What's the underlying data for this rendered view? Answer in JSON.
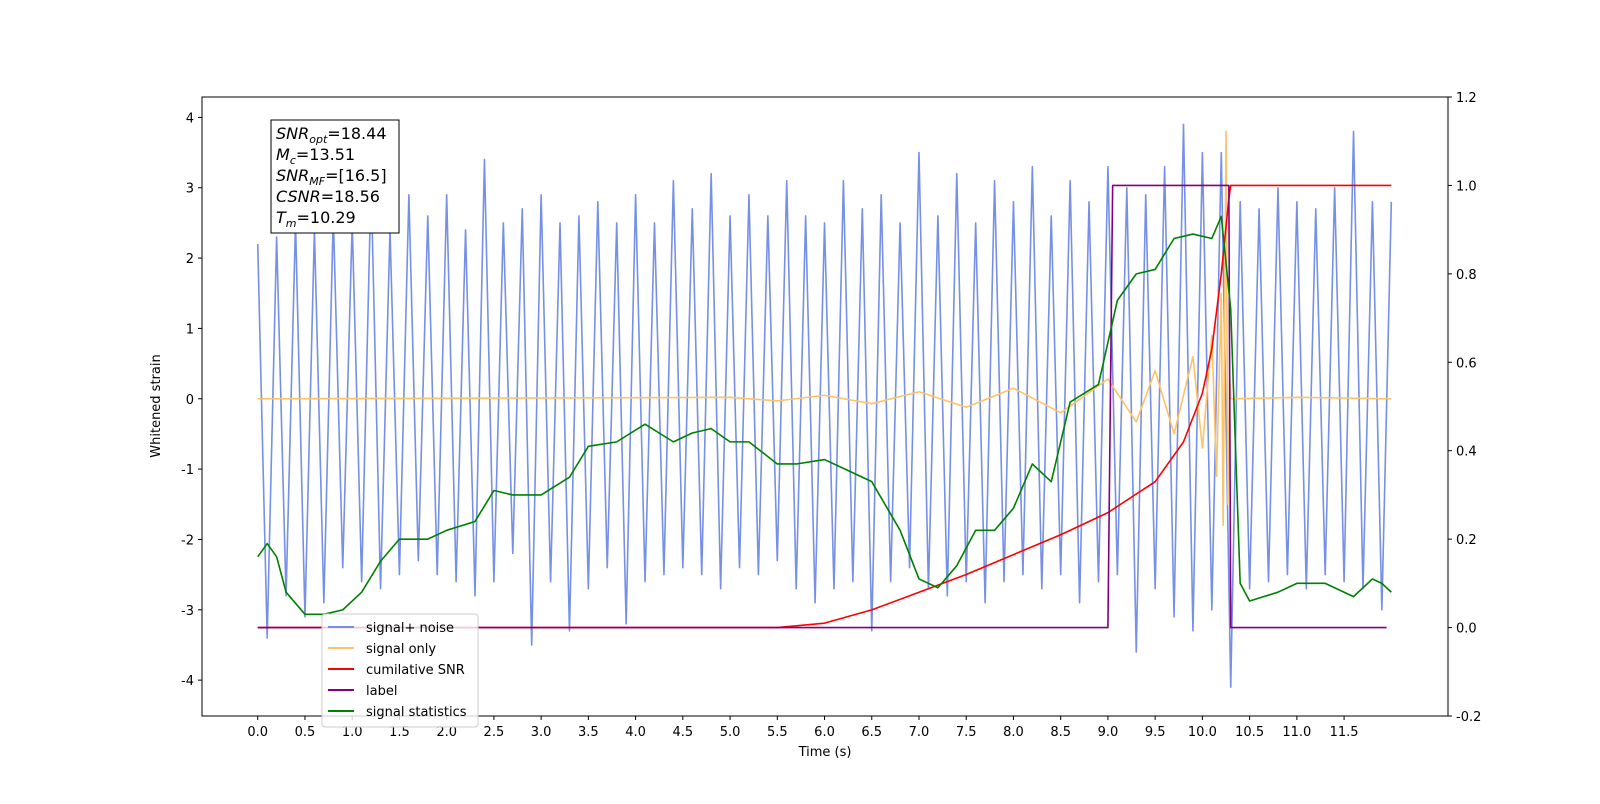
{
  "chart_data": {
    "type": "line",
    "xlabel": "Time (s)",
    "ylabel": "Whitened strain",
    "xlim": [
      -0.59,
      12.6
    ],
    "ylim": [
      -4.51,
      4.29
    ],
    "y2lim": [
      -0.2,
      1.2
    ],
    "xticks": [
      {
        "value": 0,
        "label": "0.0"
      },
      0.5,
      {
        "value": 1,
        "label": "1.0"
      },
      1.5,
      {
        "value": 2,
        "label": "2.0"
      },
      2.5,
      {
        "value": 3,
        "label": "3.0"
      },
      3.5,
      {
        "value": 4,
        "label": "4.0"
      },
      4.5,
      {
        "value": 5,
        "label": "5.0"
      },
      5.5,
      {
        "value": 6,
        "label": "6.0"
      },
      6.5,
      {
        "value": 7,
        "label": "7.0"
      },
      7.5,
      {
        "value": 8,
        "label": "8.0"
      },
      8.5,
      {
        "value": 9,
        "label": "9.0"
      },
      9.5,
      {
        "value": 10,
        "label": "10.0"
      },
      10.5,
      {
        "value": 11,
        "label": "11.0"
      },
      11.5
    ],
    "yticks": [
      -4,
      -3,
      -2,
      -1,
      0,
      1,
      2,
      3,
      4
    ],
    "y2ticks": [
      -0.2,
      {
        "value": 0,
        "label": "0.0"
      },
      0.2,
      0.4,
      0.6,
      0.8,
      {
        "value": 1,
        "label": "1.0"
      },
      1.2
    ],
    "legend": "lower left",
    "annotation": [
      {
        "symbol": "SNR",
        "sub": "opt",
        "text": "=18.44"
      },
      {
        "symbol": "M",
        "sub": "c",
        "text": "=13.51"
      },
      {
        "symbol": "SNR",
        "sub": "MF",
        "text": "=[16.5]"
      },
      {
        "symbol": "CSNR",
        "sub": null,
        "text": "=18.56"
      },
      {
        "symbol": "T",
        "sub": "m",
        "text": "=10.29"
      }
    ],
    "series": [
      {
        "name": "signal+ noise",
        "color": "#7590e6",
        "axis": "y",
        "x": [
          0,
          0.1,
          0.2,
          0.3,
          0.4,
          0.5,
          0.6,
          0.7,
          0.8,
          0.9,
          1,
          1.1,
          1.2,
          1.3,
          1.4,
          1.5,
          1.6,
          1.7,
          1.8,
          1.9,
          2,
          2.1,
          2.2,
          2.3,
          2.4,
          2.5,
          2.6,
          2.7,
          2.8,
          2.9,
          3,
          3.1,
          3.2,
          3.3,
          3.4,
          3.5,
          3.6,
          3.7,
          3.8,
          3.9,
          4,
          4.1,
          4.2,
          4.3,
          4.4,
          4.5,
          4.6,
          4.7,
          4.8,
          4.9,
          5,
          5.1,
          5.2,
          5.3,
          5.4,
          5.5,
          5.6,
          5.7,
          5.8,
          5.9,
          6,
          6.1,
          6.2,
          6.3,
          6.4,
          6.5,
          6.6,
          6.7,
          6.8,
          6.9,
          7,
          7.1,
          7.2,
          7.3,
          7.4,
          7.5,
          7.6,
          7.7,
          7.8,
          7.9,
          8,
          8.1,
          8.2,
          8.3,
          8.4,
          8.5,
          8.6,
          8.7,
          8.8,
          8.9,
          9,
          9.1,
          9.2,
          9.3,
          9.4,
          9.5,
          9.6,
          9.7,
          9.8,
          9.9,
          10,
          10.1,
          10.2,
          10.3,
          10.4,
          10.5,
          10.6,
          10.7,
          10.8,
          10.9,
          11,
          11.1,
          11.2,
          11.3,
          11.4,
          11.5,
          11.6,
          11.7,
          11.8,
          11.9,
          12
        ],
        "values": [
          2.2,
          -3.4,
          2.3,
          -2.8,
          2.5,
          -3.1,
          2.4,
          -2.9,
          2.6,
          -2.4,
          2.5,
          -2.6,
          3.1,
          -2.7,
          2.4,
          -2.5,
          2.9,
          -2.3,
          2.6,
          -2.5,
          2.9,
          -2.6,
          2.4,
          -2.8,
          3.4,
          -2.6,
          2.5,
          -2.2,
          2.7,
          -3.5,
          2.9,
          -2.6,
          2.5,
          -3.3,
          2.6,
          -2.7,
          2.8,
          -2.4,
          2.5,
          -3.2,
          2.9,
          -2.6,
          2.5,
          -2.5,
          3.1,
          -2.4,
          2.7,
          -2.5,
          3.2,
          -2.7,
          2.6,
          -2.4,
          2.9,
          -2.5,
          2.6,
          -2.3,
          3.1,
          -2.7,
          2.6,
          -2.9,
          2.5,
          -2.7,
          3.1,
          -2.6,
          2.7,
          -3.3,
          2.9,
          -2.6,
          2.5,
          -2.4,
          3.5,
          -2.7,
          2.6,
          -2.8,
          3.2,
          -2.6,
          2.5,
          -2.9,
          3.1,
          -2.6,
          2.8,
          -2.5,
          3.3,
          -2.7,
          2.6,
          -2.5,
          3.1,
          -2.9,
          2.8,
          -2.6,
          3.3,
          -2.5,
          3.0,
          -3.6,
          2.9,
          -2.7,
          3.3,
          -3.1,
          3.9,
          -3.3,
          3.5,
          -3.0,
          3.5,
          -4.1,
          2.8,
          -2.7,
          2.7,
          -2.6,
          3.0,
          -2.5,
          2.8,
          -2.7,
          2.7,
          -2.5,
          3.0,
          -2.6,
          3.8,
          -2.7,
          2.8,
          -3.0,
          2.8
        ]
      },
      {
        "name": "signal only",
        "color": "#ffc266",
        "axis": "y",
        "x": [
          0,
          5,
          5.5,
          6,
          6.5,
          7,
          7.5,
          8,
          8.5,
          9,
          9.3,
          9.5,
          9.7,
          9.9,
          10,
          10.1,
          10.15,
          10.2,
          10.22,
          10.25,
          10.27,
          10.29,
          10.3,
          11,
          12
        ],
        "values": [
          0,
          0.02,
          -0.03,
          0.05,
          -0.07,
          0.1,
          -0.12,
          0.15,
          -0.2,
          0.28,
          -0.33,
          0.4,
          -0.5,
          0.6,
          -0.7,
          0.9,
          -1.1,
          1.5,
          -1.8,
          3.8,
          -1.5,
          0.3,
          0,
          0.02,
          0
        ]
      },
      {
        "name": "cumilative SNR",
        "color": "#ff0000",
        "axis": "y2",
        "x": [
          0,
          5.5,
          6,
          6.5,
          7,
          7.5,
          8,
          8.5,
          9,
          9.5,
          9.8,
          10,
          10.1,
          10.2,
          10.28,
          10.3,
          12
        ],
        "values": [
          0,
          0,
          0.01,
          0.04,
          0.08,
          0.12,
          0.165,
          0.21,
          0.26,
          0.33,
          0.42,
          0.53,
          0.63,
          0.8,
          0.97,
          1,
          1
        ]
      },
      {
        "name": "label",
        "color": "#800080",
        "axis": "y2",
        "x": [
          0,
          9,
          9.05,
          10.28,
          10.3,
          11.95
        ],
        "values": [
          0,
          0,
          1,
          1,
          0,
          0
        ]
      },
      {
        "name": "signal statistics",
        "color": "#008000",
        "axis": "y2",
        "x": [
          0,
          0.1,
          0.2,
          0.3,
          0.5,
          0.7,
          0.9,
          1.1,
          1.3,
          1.5,
          1.8,
          2,
          2.3,
          2.5,
          2.7,
          3,
          3.3,
          3.5,
          3.8,
          4.1,
          4.4,
          4.6,
          4.8,
          5,
          5.2,
          5.5,
          5.7,
          6,
          6.2,
          6.5,
          6.8,
          7,
          7.2,
          7.4,
          7.6,
          7.8,
          8,
          8.2,
          8.4,
          8.6,
          8.9,
          9.1,
          9.3,
          9.5,
          9.7,
          9.9,
          10.1,
          10.2,
          10.3,
          10.4,
          10.5,
          10.8,
          11,
          11.3,
          11.6,
          11.8,
          11.9,
          12
        ],
        "values": [
          0.16,
          0.19,
          0.16,
          0.08,
          0.03,
          0.03,
          0.04,
          0.08,
          0.15,
          0.2,
          0.2,
          0.22,
          0.24,
          0.31,
          0.3,
          0.3,
          0.34,
          0.41,
          0.42,
          0.46,
          0.42,
          0.44,
          0.45,
          0.42,
          0.42,
          0.37,
          0.37,
          0.38,
          0.36,
          0.33,
          0.22,
          0.11,
          0.09,
          0.14,
          0.22,
          0.22,
          0.27,
          0.37,
          0.33,
          0.51,
          0.55,
          0.74,
          0.8,
          0.81,
          0.88,
          0.89,
          0.88,
          0.93,
          0.72,
          0.1,
          0.06,
          0.08,
          0.1,
          0.1,
          0.07,
          0.11,
          0.1,
          0.08
        ]
      }
    ]
  }
}
